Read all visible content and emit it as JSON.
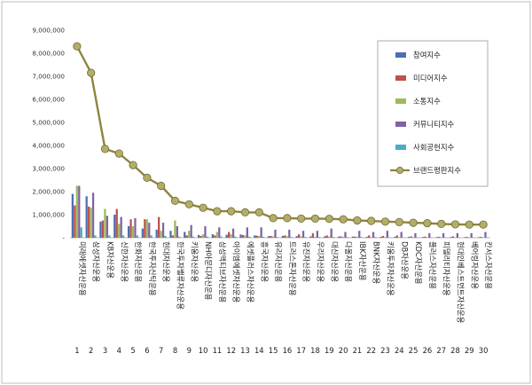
{
  "chart_data": {
    "type": "bar",
    "ylim": [
      0,
      9000000
    ],
    "y_ticks": [
      "-",
      "1,000,000",
      "2,000,000",
      "3,000,000",
      "4,000,000",
      "5,000,000",
      "6,000,000",
      "7,000,000",
      "8,000,000",
      "9,000,000"
    ],
    "categories": [
      "미래에셋자산운용",
      "삼성자산운용",
      "KB자산운용",
      "신한자산운용",
      "한화자산운용",
      "한국투자신탁운용",
      "현대자산운용",
      "한국투자밸류자산운용",
      "키움자산운용",
      "NH아문디자산운용",
      "삼성액티브자산운용",
      "아이엠에셋자산운용",
      "에셋플러스자산운용",
      "흥국자산운용",
      "유리자산운용",
      "트러스톤자산운용",
      "유진자산운용",
      "우리자산운용",
      "대신자산운용",
      "다올자산운용",
      "IBK자산운용",
      "BNK자산운용",
      "키움투자자산운용",
      "DB자산운용",
      "KDC자산운용",
      "플러스자산운용",
      "피델리티자산운용",
      "현대인베스트먼트자산운용",
      "베어링자산운용",
      "칸서스자산운용"
    ],
    "rank_labels": [
      "1",
      "2",
      "3",
      "4",
      "5",
      "6",
      "7",
      "8",
      "9",
      "10",
      "11",
      "12",
      "13",
      "14",
      "15",
      "16",
      "17",
      "18",
      "19",
      "20",
      "21",
      "22",
      "23",
      "24",
      "25",
      "26",
      "27",
      "28",
      "29",
      "30"
    ],
    "legend_position": "top-right",
    "grid": false,
    "series": [
      {
        "name": "참여지수",
        "kind": "bar",
        "color": "#4a6fb5",
        "values": [
          1900000,
          1800000,
          700000,
          1000000,
          500000,
          400000,
          350000,
          300000,
          250000,
          120000,
          150000,
          130000,
          140000,
          100000,
          70000,
          80000,
          70000,
          60000,
          60000,
          50000,
          50000,
          40000,
          40000,
          40000,
          35000,
          30000,
          30000,
          30000,
          25000,
          25000
        ]
      },
      {
        "name": "미디어지수",
        "kind": "bar",
        "color": "#c0504d",
        "values": [
          1400000,
          1350000,
          750000,
          1250000,
          800000,
          800000,
          900000,
          100000,
          100000,
          80000,
          100000,
          250000,
          120000,
          90000,
          80000,
          100000,
          150000,
          200000,
          100000,
          60000,
          50000,
          100000,
          80000,
          100000,
          60000,
          50000,
          40000,
          60000,
          40000,
          40000
        ]
      },
      {
        "name": "소통지수",
        "kind": "bar",
        "color": "#9bbb59",
        "values": [
          2250000,
          1300000,
          1250000,
          600000,
          500000,
          800000,
          300000,
          750000,
          300000,
          150000,
          250000,
          150000,
          100000,
          80000,
          60000,
          70000,
          60000,
          40000,
          50000,
          40000,
          40000,
          30000,
          30000,
          30000,
          30000,
          25000,
          25000,
          20000,
          20000,
          20000
        ]
      },
      {
        "name": "커뮤니티지수",
        "kind": "bar",
        "color": "#8064a2",
        "values": [
          2250000,
          1950000,
          950000,
          900000,
          850000,
          650000,
          650000,
          500000,
          550000,
          500000,
          450000,
          400000,
          450000,
          450000,
          350000,
          350000,
          300000,
          300000,
          400000,
          250000,
          300000,
          250000,
          300000,
          250000,
          200000,
          200000,
          200000,
          200000,
          200000,
          250000
        ]
      },
      {
        "name": "사회공헌지수",
        "kind": "bar",
        "color": "#4bacc6",
        "values": [
          450000,
          100000,
          100000,
          100000,
          100000,
          100000,
          80000,
          50000,
          50000,
          50000,
          50000,
          50000,
          50000,
          40000,
          30000,
          30000,
          30000,
          30000,
          30000,
          30000,
          30000,
          30000,
          20000,
          20000,
          20000,
          20000,
          20000,
          20000,
          20000,
          20000
        ]
      },
      {
        "name": "브랜드평판지수",
        "kind": "line",
        "color": "#8d8540",
        "values": [
          8300000,
          7150000,
          3850000,
          3650000,
          3150000,
          2600000,
          2250000,
          1600000,
          1450000,
          1300000,
          1150000,
          1150000,
          1100000,
          1100000,
          850000,
          850000,
          830000,
          830000,
          820000,
          800000,
          750000,
          730000,
          700000,
          680000,
          650000,
          630000,
          600000,
          580000,
          570000,
          570000
        ]
      }
    ]
  }
}
